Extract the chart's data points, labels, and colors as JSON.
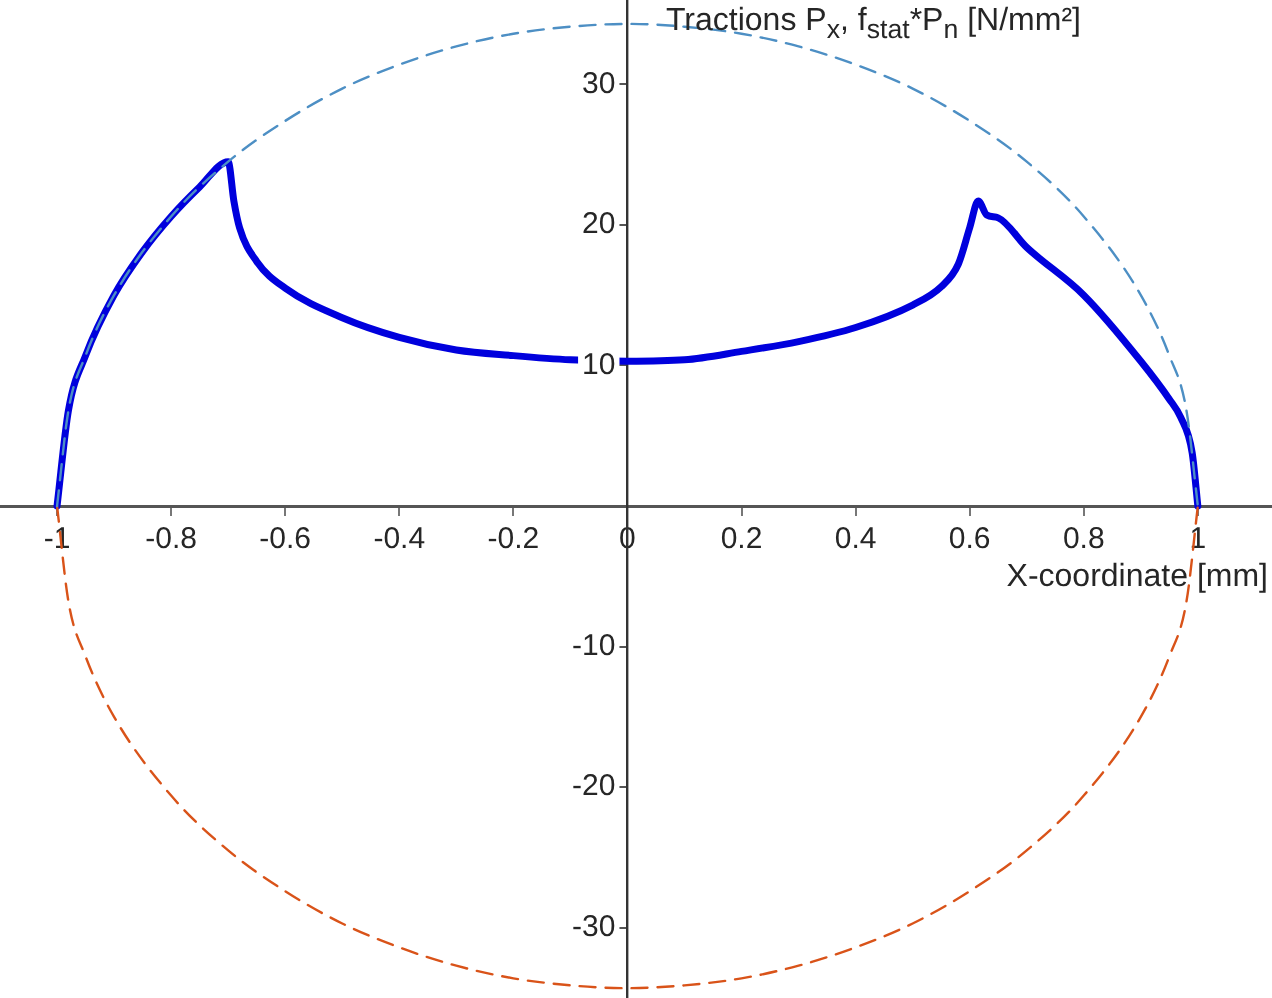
{
  "chart_data": {
    "type": "line",
    "xlabel": "X-coordinate [mm]",
    "ylabel": "Tractions P$_{x}$, f$_{stat}$*P$_{n}$ [N/mm²]",
    "xlim": [
      -1.1,
      1.13
    ],
    "ylim": [
      -35,
      36
    ],
    "xticks": [
      -1,
      -0.8,
      -0.6,
      -0.4,
      -0.2,
      0,
      0.2,
      0.4,
      0.6,
      0.8,
      1
    ],
    "yticks": [
      -30,
      -20,
      -10,
      10,
      20,
      30
    ],
    "series": [
      {
        "color": "#4d8fc4",
        "line_style": "dashed",
        "x": [
          -1,
          -0.98,
          -0.95,
          -0.9,
          -0.8,
          -0.7,
          -0.6,
          -0.5,
          -0.4,
          -0.3,
          -0.2,
          -0.1,
          0,
          0.1,
          0.2,
          0.3,
          0.4,
          0.5,
          0.6,
          0.7,
          0.8,
          0.9,
          0.95,
          0.98,
          1
        ],
        "values": [
          0,
          6.8,
          10.7,
          15,
          20.6,
          24.5,
          27.4,
          29.7,
          31.4,
          32.7,
          33.6,
          34.1,
          34.3,
          34.1,
          33.6,
          32.7,
          31.4,
          29.7,
          27.4,
          24.5,
          20.6,
          15,
          10.7,
          6.8,
          0
        ]
      },
      {
        "color": "#d95319",
        "line_style": "dashed",
        "x": [
          -1,
          -0.98,
          -0.95,
          -0.9,
          -0.8,
          -0.7,
          -0.6,
          -0.5,
          -0.4,
          -0.3,
          -0.2,
          -0.1,
          0,
          0.1,
          0.2,
          0.3,
          0.4,
          0.5,
          0.6,
          0.7,
          0.8,
          0.9,
          0.95,
          0.98,
          1
        ],
        "values": [
          0,
          -6.8,
          -10.7,
          -15,
          -20.6,
          -24.5,
          -27.4,
          -29.7,
          -31.4,
          -32.7,
          -33.6,
          -34.1,
          -34.3,
          -34.1,
          -33.6,
          -32.7,
          -31.4,
          -29.7,
          -27.4,
          -24.5,
          -20.6,
          -15,
          -10.7,
          -6.8,
          0
        ]
      },
      {
        "color": "#0000dd",
        "line_style": "solid",
        "x": [
          -1,
          -0.98,
          -0.95,
          -0.9,
          -0.85,
          -0.8,
          -0.75,
          -0.7,
          -0.69,
          -0.68,
          -0.65,
          -0.6,
          -0.5,
          -0.4,
          -0.3,
          -0.2,
          -0.1,
          0,
          0.1,
          0.2,
          0.3,
          0.4,
          0.5,
          0.55,
          0.58,
          0.6,
          0.615,
          0.63,
          0.65,
          0.7,
          0.8,
          0.9,
          0.95,
          0.97,
          0.99,
          1
        ],
        "values": [
          0,
          6.8,
          10.7,
          15,
          18.1,
          20.6,
          22.7,
          24.5,
          21.7,
          19.8,
          17.4,
          15.5,
          13.4,
          12,
          11.1,
          10.7,
          10.4,
          10.3,
          10.4,
          11,
          11.7,
          12.7,
          14.3,
          15.6,
          17.2,
          19.8,
          21.7,
          20.7,
          20.5,
          18.4,
          15,
          10.3,
          7.6,
          6.3,
          3.8,
          0
        ]
      }
    ]
  }
}
